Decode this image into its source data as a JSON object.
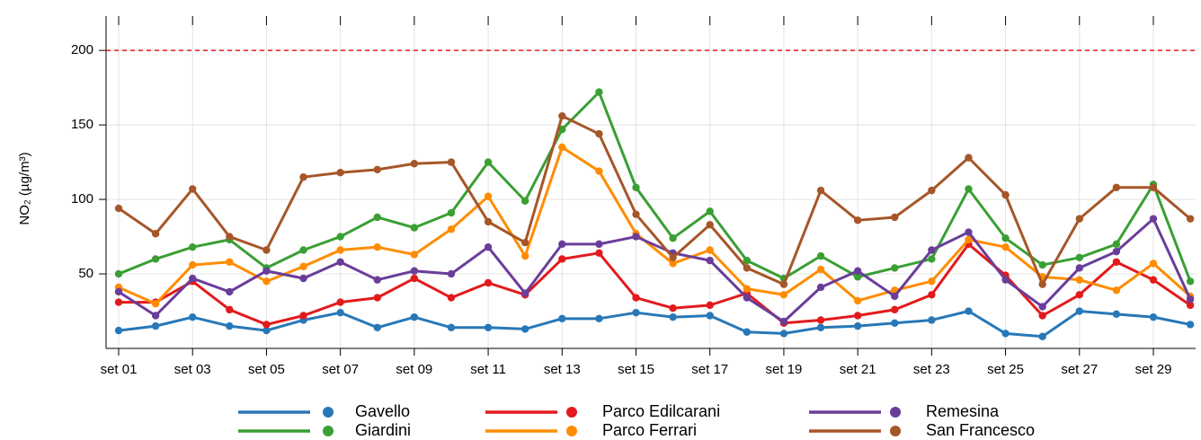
{
  "chart_data": {
    "type": "line",
    "ylabel": "NO₂ (µg/m³)",
    "categories": [
      "set 01",
      null,
      "set 03",
      null,
      "set 05",
      null,
      "set 07",
      null,
      "set 09",
      null,
      "set 11",
      null,
      "set 13",
      null,
      "set 15",
      null,
      "set 17",
      null,
      "set 19",
      null,
      "set 21",
      null,
      "set 23",
      null,
      "set 25",
      null,
      "set 27",
      null,
      "set 29",
      null
    ],
    "series": [
      {
        "name": "Gavello",
        "color": "#2878b8",
        "values": [
          12,
          15,
          21,
          15,
          12,
          19,
          24,
          14,
          21,
          14,
          14,
          13,
          20,
          20,
          24,
          21,
          22,
          11,
          10,
          14,
          15,
          17,
          19,
          25,
          10,
          8,
          25,
          23,
          21,
          16
        ]
      },
      {
        "name": "Giardini",
        "color": "#3a9f34",
        "values": [
          50,
          60,
          68,
          73,
          54,
          66,
          75,
          88,
          81,
          91,
          125,
          99,
          147,
          172,
          108,
          74,
          92,
          59,
          47,
          62,
          48,
          54,
          60,
          107,
          74,
          56,
          61,
          70,
          110,
          45
        ]
      },
      {
        "name": "Parco Edilcarani",
        "color": "#e31a1c",
        "values": [
          31,
          31,
          45,
          26,
          16,
          22,
          31,
          34,
          47,
          34,
          44,
          36,
          60,
          64,
          34,
          27,
          29,
          37,
          17,
          19,
          22,
          26,
          36,
          70,
          49,
          22,
          36,
          58,
          46,
          29
        ]
      },
      {
        "name": "Parco Ferrari",
        "color": "#ff8c00",
        "values": [
          41,
          30,
          56,
          58,
          45,
          55,
          66,
          68,
          63,
          80,
          102,
          62,
          135,
          119,
          77,
          57,
          66,
          40,
          36,
          53,
          32,
          39,
          45,
          73,
          68,
          48,
          46,
          39,
          57,
          35
        ]
      },
      {
        "name": "Remesina",
        "color": "#6a3d9a",
        "values": [
          38,
          22,
          47,
          38,
          52,
          47,
          58,
          46,
          52,
          50,
          68,
          37,
          70,
          70,
          75,
          64,
          59,
          34,
          18,
          41,
          52,
          35,
          66,
          78,
          46,
          28,
          54,
          65,
          87,
          33
        ]
      },
      {
        "name": "San Francesco",
        "color": "#a65628",
        "values": [
          94,
          77,
          107,
          75,
          66,
          115,
          118,
          120,
          124,
          125,
          85,
          71,
          156,
          144,
          90,
          61,
          83,
          54,
          43,
          106,
          86,
          88,
          106,
          128,
          103,
          43,
          87,
          108,
          108,
          87
        ]
      }
    ],
    "ylim": [
      0,
      223
    ],
    "yticks": [
      50,
      100,
      150,
      200
    ],
    "grid": true,
    "reference_line": {
      "value": 200,
      "color": "#e31a1c"
    },
    "legend": "bottom"
  }
}
